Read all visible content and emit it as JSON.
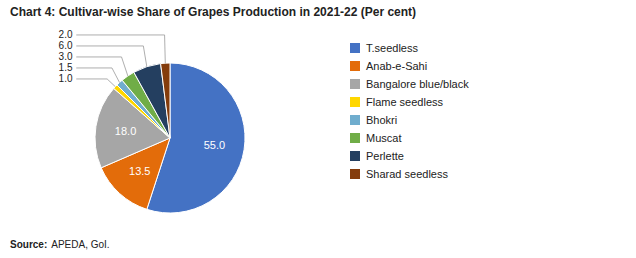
{
  "chart_data": {
    "type": "pie",
    "title": "Chart 4: Cultivar-wise Share of Grapes Production in 2021-22 (Per cent)",
    "categories": [
      "T.seedless",
      "Anab-e-Sahi",
      "Bangalore blue/black",
      "Flame seedless",
      "Bhokri",
      "Muscat",
      "Perlette",
      "Sharad seedless"
    ],
    "values": [
      55.0,
      13.5,
      18.0,
      1.0,
      1.5,
      3.0,
      6.0,
      2.0
    ],
    "value_labels": [
      "55.0",
      "13.5",
      "18.0",
      "1.0",
      "1.5",
      "3.0",
      "6.0",
      "2.0"
    ],
    "colors": [
      "#4472C4",
      "#E36C0A",
      "#A6A6A6",
      "#FFD700",
      "#70ADCE",
      "#70AD47",
      "#243F60",
      "#843C0C"
    ],
    "data_labels": true,
    "legend": "right",
    "annotations": [
      "Source:",
      "APEDA, GoI."
    ]
  }
}
